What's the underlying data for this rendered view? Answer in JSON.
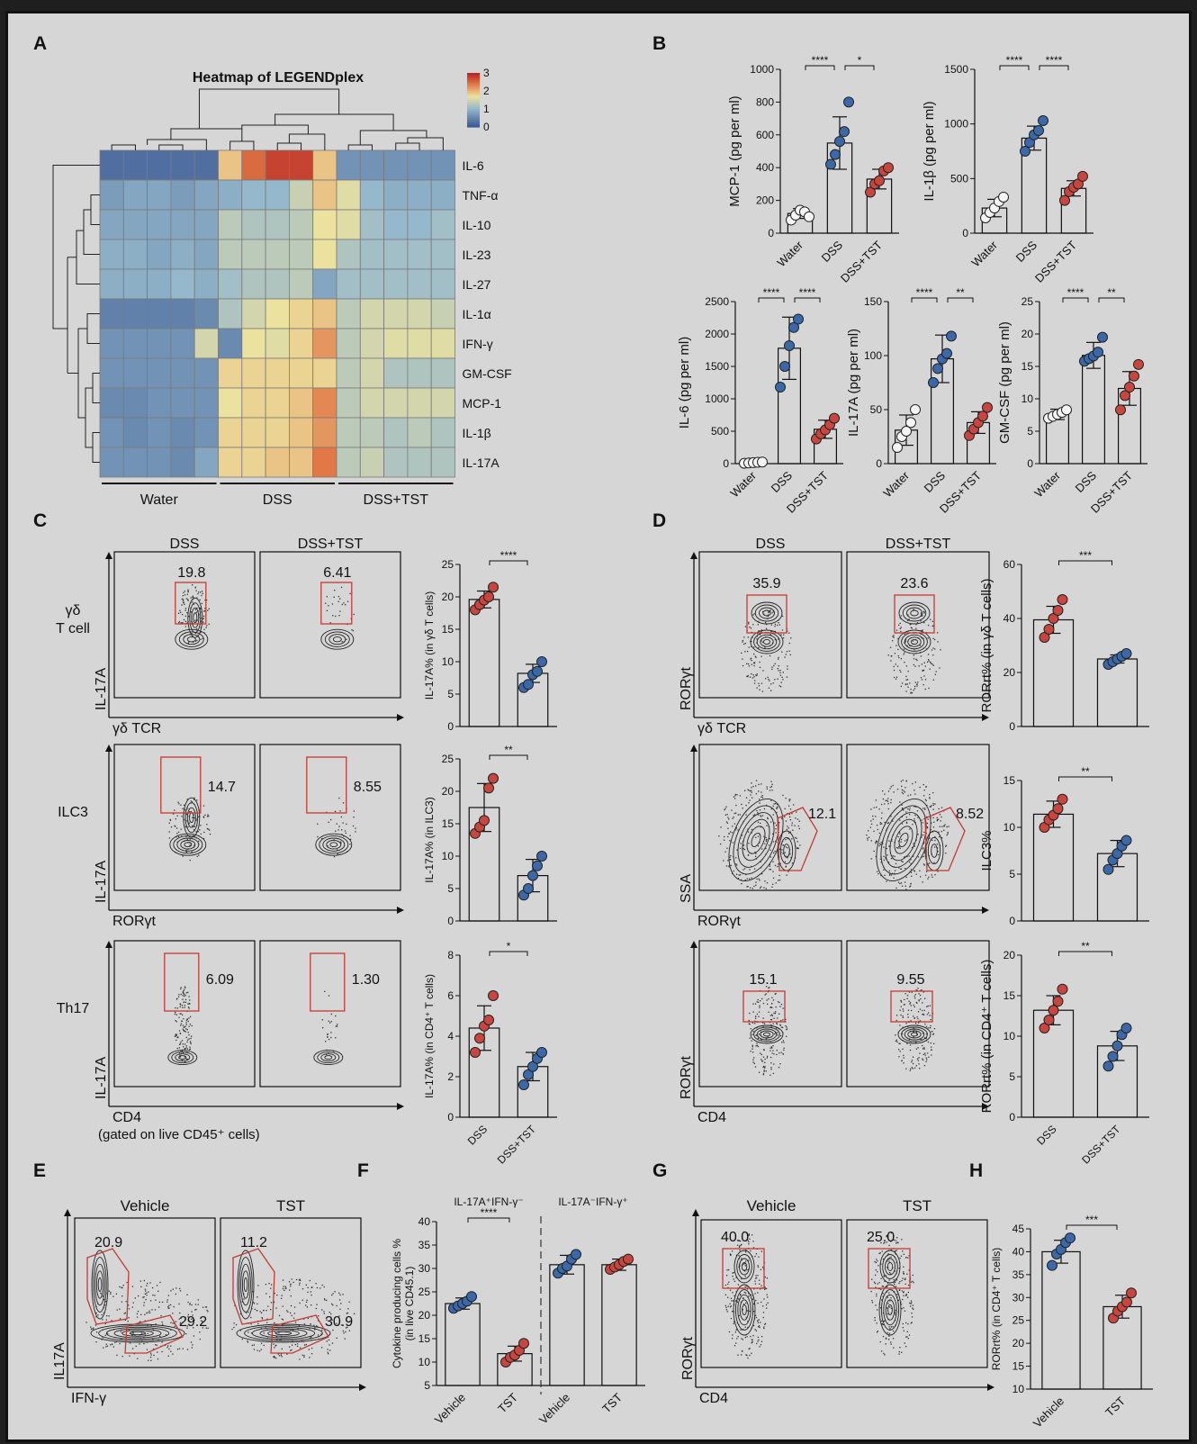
{
  "panel_labels": {
    "A": "A",
    "B": "B",
    "C": "C",
    "D": "D",
    "E": "E",
    "F": "F",
    "G": "G",
    "H": "H"
  },
  "colors": {
    "red": "#c9463f",
    "blue": "#3b68a8",
    "white": "#f4f4f4",
    "gate": "#c23b34"
  },
  "chart_data": [
    {
      "id": "A-heatmap",
      "type": "heatmap",
      "title": "Heatmap of LEGENDplex",
      "rows": [
        "IL-6",
        "TNF-α",
        "IL-10",
        "IL-23",
        "IL-27",
        "IL-1α",
        "IFN-γ",
        "GM-CSF",
        "MCP-1",
        "IL-1β",
        "IL-17A"
      ],
      "groups": [
        "Water",
        "DSS",
        "DSS+TST"
      ],
      "colorbar": {
        "ticks": [
          "3",
          "2",
          "1",
          "0"
        ],
        "range": [
          0,
          3
        ]
      },
      "values": [
        [
          0.2,
          0.2,
          0.2,
          0.2,
          0.2,
          1.9,
          2.5,
          2.8,
          2.8,
          1.9,
          0.6,
          0.6,
          0.6,
          0.6,
          0.6
        ],
        [
          0.7,
          0.8,
          0.8,
          0.7,
          0.8,
          0.9,
          1.0,
          1.0,
          1.4,
          1.9,
          1.6,
          1.0,
          0.9,
          0.9,
          0.9
        ],
        [
          0.8,
          0.8,
          0.8,
          0.8,
          0.8,
          1.3,
          1.2,
          1.2,
          1.3,
          1.7,
          1.6,
          1.1,
          1.0,
          1.0,
          1.1
        ],
        [
          0.9,
          0.9,
          0.8,
          0.9,
          0.8,
          1.3,
          1.3,
          1.3,
          1.3,
          1.7,
          1.2,
          1.1,
          1.1,
          1.1,
          1.1
        ],
        [
          0.9,
          0.9,
          0.9,
          1.0,
          0.9,
          1.1,
          1.2,
          1.2,
          1.3,
          0.8,
          1.1,
          1.1,
          1.1,
          1.1,
          1.1
        ],
        [
          0.4,
          0.4,
          0.4,
          0.4,
          0.5,
          1.2,
          1.5,
          1.7,
          1.8,
          1.9,
          1.3,
          1.5,
          1.5,
          1.5,
          1.4
        ],
        [
          0.6,
          0.6,
          0.6,
          0.6,
          1.5,
          0.5,
          1.7,
          1.6,
          1.8,
          2.2,
          1.3,
          1.5,
          1.6,
          1.6,
          1.6
        ],
        [
          0.6,
          0.6,
          0.6,
          0.6,
          0.6,
          1.8,
          1.8,
          1.8,
          1.8,
          1.8,
          1.3,
          1.5,
          1.2,
          1.2,
          1.2
        ],
        [
          0.5,
          0.5,
          0.6,
          0.6,
          0.6,
          1.7,
          1.8,
          1.8,
          1.9,
          2.3,
          1.3,
          1.5,
          1.5,
          1.5,
          1.5
        ],
        [
          0.6,
          0.5,
          0.6,
          0.5,
          0.6,
          1.8,
          1.8,
          1.8,
          1.9,
          2.2,
          1.3,
          1.3,
          1.2,
          1.3,
          1.2
        ],
        [
          0.6,
          0.6,
          0.6,
          0.5,
          0.8,
          1.8,
          1.8,
          1.9,
          1.9,
          2.4,
          1.3,
          1.4,
          1.2,
          1.2,
          1.2
        ]
      ]
    },
    {
      "id": "B-mcp1",
      "type": "bar",
      "ylabel": "MCP-1 (pg per ml)",
      "ylim": [
        0,
        1000
      ],
      "yticks": [
        "0",
        "200",
        "400",
        "600",
        "800",
        "1000"
      ],
      "categories": [
        "Water",
        "DSS",
        "DSS+TST"
      ],
      "values": [
        120,
        550,
        330
      ],
      "errors": [
        30,
        160,
        60
      ],
      "dot_colors": [
        "white",
        "blue",
        "red"
      ],
      "points": [
        [
          80,
          110,
          140,
          130,
          100
        ],
        [
          420,
          480,
          560,
          620,
          800
        ],
        [
          250,
          300,
          320,
          380,
          400
        ]
      ],
      "significance": [
        {
          "from": 0,
          "to": 1,
          "label": "****"
        },
        {
          "from": 1,
          "to": 2,
          "label": "*"
        }
      ]
    },
    {
      "id": "B-il1b",
      "type": "bar",
      "ylabel": "IL-1β (pg per ml)",
      "ylim": [
        0,
        1500
      ],
      "yticks": [
        "0",
        "500",
        "1000",
        "1500"
      ],
      "categories": [
        "Water",
        "DSS",
        "DSS+TST"
      ],
      "values": [
        230,
        870,
        410
      ],
      "errors": [
        80,
        110,
        70
      ],
      "dot_colors": [
        "white",
        "blue",
        "red"
      ],
      "points": [
        [
          140,
          190,
          230,
          290,
          330
        ],
        [
          750,
          830,
          900,
          940,
          1030
        ],
        [
          300,
          380,
          420,
          450,
          520
        ]
      ],
      "significance": [
        {
          "from": 0,
          "to": 1,
          "label": "****"
        },
        {
          "from": 1,
          "to": 2,
          "label": "****"
        }
      ]
    },
    {
      "id": "B-il6",
      "type": "bar",
      "ylabel": "IL-6 (pg per ml)",
      "ylim": [
        0,
        2500
      ],
      "yticks": [
        "0",
        "500",
        "1000",
        "1500",
        "2000",
        "2500"
      ],
      "categories": [
        "Water",
        "DSS",
        "DSS+TST"
      ],
      "values": [
        20,
        1780,
        530
      ],
      "errors": [
        10,
        480,
        140
      ],
      "dot_colors": [
        "white",
        "blue",
        "red"
      ],
      "points": [
        [
          5,
          10,
          15,
          20,
          25
        ],
        [
          1180,
          1500,
          1820,
          2100,
          2230
        ],
        [
          380,
          460,
          520,
          600,
          700
        ]
      ],
      "significance": [
        {
          "from": 0,
          "to": 1,
          "label": "****"
        },
        {
          "from": 1,
          "to": 2,
          "label": "****"
        }
      ]
    },
    {
      "id": "B-il17a",
      "type": "bar",
      "ylabel": "IL-17A (pg per ml)",
      "ylim": [
        0,
        150
      ],
      "yticks": [
        "0",
        "50",
        "100",
        "150"
      ],
      "categories": [
        "Water",
        "DSS",
        "DSS+TST"
      ],
      "values": [
        31,
        97,
        38
      ],
      "errors": [
        14,
        22,
        10
      ],
      "dot_colors": [
        "white",
        "blue",
        "red"
      ],
      "points": [
        [
          15,
          25,
          30,
          38,
          50
        ],
        [
          75,
          88,
          97,
          102,
          118
        ],
        [
          26,
          32,
          38,
          44,
          52
        ]
      ],
      "significance": [
        {
          "from": 0,
          "to": 1,
          "label": "****"
        },
        {
          "from": 1,
          "to": 2,
          "label": "**"
        }
      ]
    },
    {
      "id": "B-gmcsf",
      "type": "bar",
      "ylabel": "GM-CSF (pg per ml)",
      "ylim": [
        0,
        25
      ],
      "yticks": [
        "0",
        "5",
        "10",
        "15",
        "20",
        "25"
      ],
      "categories": [
        "Water",
        "DSS",
        "DSS+TST"
      ],
      "values": [
        7.6,
        16.7,
        11.6
      ],
      "errors": [
        0.8,
        2.0,
        2.6
      ],
      "dot_colors": [
        "white",
        "blue",
        "red"
      ],
      "points": [
        [
          7.0,
          7.3,
          7.6,
          7.9,
          8.3
        ],
        [
          15.8,
          16.2,
          16.6,
          17.2,
          19.5
        ],
        [
          8.3,
          10.5,
          11.8,
          13.5,
          15.3
        ]
      ],
      "significance": [
        {
          "from": 0,
          "to": 1,
          "label": "****"
        },
        {
          "from": 1,
          "to": 2,
          "label": "**"
        }
      ]
    },
    {
      "id": "C-gdt",
      "type": "bar",
      "ylabel": "IL-17A% (in γδ T cells)",
      "ylim": [
        0,
        25
      ],
      "yticks": [
        "0",
        "5",
        "10",
        "15",
        "20",
        "25"
      ],
      "categories": [
        "DSS",
        "DSS+TST"
      ],
      "show_xticks": false,
      "values": [
        19.6,
        8.2
      ],
      "errors": [
        1.3,
        1.4
      ],
      "dot_colors": [
        "red",
        "blue"
      ],
      "points": [
        [
          18.0,
          18.8,
          19.5,
          20.0,
          21.5
        ],
        [
          6.0,
          6.5,
          8.0,
          8.5,
          10.0
        ]
      ],
      "significance": [
        {
          "from": 0,
          "to": 1,
          "label": "****"
        }
      ]
    },
    {
      "id": "C-ilc3",
      "type": "bar",
      "ylabel": "IL-17A% (in ILC3)",
      "ylim": [
        0,
        25
      ],
      "yticks": [
        "0",
        "5",
        "10",
        "15",
        "20",
        "25"
      ],
      "categories": [
        "DSS",
        "DSS+TST"
      ],
      "show_xticks": false,
      "values": [
        17.5,
        7.0
      ],
      "errors": [
        3.7,
        2.5
      ],
      "dot_colors": [
        "red",
        "blue"
      ],
      "points": [
        [
          13.5,
          14.5,
          15.5,
          20.5,
          22.0
        ],
        [
          4.0,
          5.0,
          7.0,
          8.5,
          10.0
        ]
      ],
      "significance": [
        {
          "from": 0,
          "to": 1,
          "label": "**"
        }
      ]
    },
    {
      "id": "C-th17",
      "type": "bar",
      "ylabel": "IL-17A% (in CD4⁺ T cells)",
      "ylim": [
        0,
        8
      ],
      "yticks": [
        "0",
        "2",
        "4",
        "6",
        "8"
      ],
      "categories": [
        "DSS",
        "DSS+TST"
      ],
      "values": [
        4.4,
        2.5
      ],
      "errors": [
        1.1,
        0.7
      ],
      "dot_colors": [
        "red",
        "blue"
      ],
      "points": [
        [
          3.2,
          3.9,
          4.5,
          4.8,
          6.0
        ],
        [
          1.6,
          2.1,
          2.5,
          2.9,
          3.2
        ]
      ],
      "significance": [
        {
          "from": 0,
          "to": 1,
          "label": "*"
        }
      ]
    },
    {
      "id": "D-gdt",
      "type": "bar",
      "ylabel": "RORrt% (in γδ T cells)",
      "ylim": [
        0,
        60
      ],
      "yticks": [
        "0",
        "20",
        "40",
        "60"
      ],
      "categories": [
        "DSS",
        "DSS+TST"
      ],
      "show_xticks": false,
      "values": [
        39.5,
        25.0
      ],
      "errors": [
        5.0,
        1.5
      ],
      "dot_colors": [
        "red",
        "blue"
      ],
      "points": [
        [
          33.0,
          36.0,
          40.0,
          43.0,
          47.0
        ],
        [
          23.0,
          24.0,
          25.0,
          26.0,
          27.0
        ]
      ],
      "significance": [
        {
          "from": 0,
          "to": 1,
          "label": "***"
        }
      ]
    },
    {
      "id": "D-ilc3",
      "type": "bar",
      "ylabel": "ILC3%",
      "ylim": [
        0,
        15
      ],
      "yticks": [
        "0",
        "5",
        "10",
        "15"
      ],
      "categories": [
        "DSS",
        "DSS+TST"
      ],
      "show_xticks": false,
      "values": [
        11.4,
        7.2
      ],
      "errors": [
        1.4,
        1.4
      ],
      "dot_colors": [
        "red",
        "blue"
      ],
      "points": [
        [
          10.0,
          10.8,
          11.3,
          12.0,
          13.0
        ],
        [
          5.5,
          6.5,
          7.2,
          8.0,
          8.6
        ]
      ],
      "significance": [
        {
          "from": 0,
          "to": 1,
          "label": "**"
        }
      ]
    },
    {
      "id": "D-th17",
      "type": "bar",
      "ylabel": "RORrt% (in CD4⁺ T cells)",
      "ylim": [
        0,
        20
      ],
      "yticks": [
        "0",
        "5",
        "10",
        "15",
        "20"
      ],
      "categories": [
        "DSS",
        "DSS+TST"
      ],
      "values": [
        13.2,
        8.8
      ],
      "errors": [
        1.8,
        1.8
      ],
      "dot_colors": [
        "red",
        "blue"
      ],
      "points": [
        [
          11.0,
          12.0,
          13.2,
          14.3,
          15.8
        ],
        [
          6.3,
          7.5,
          8.8,
          10.2,
          11.0
        ]
      ],
      "significance": [
        {
          "from": 0,
          "to": 1,
          "label": "**"
        }
      ]
    },
    {
      "id": "F",
      "type": "bar",
      "ylabel": "Cytokine producing cells %",
      "ylabel2": "(in live CD45.1)",
      "ylim": [
        5,
        40
      ],
      "yticks": [
        "5",
        "10",
        "15",
        "20",
        "25",
        "30",
        "35",
        "40"
      ],
      "categories": [
        "Vehicle",
        "TST",
        "Vehicle",
        "TST"
      ],
      "group_titles": [
        "IL-17A⁺IFN-γ⁻",
        "IL-17A⁻IFN-γ⁺"
      ],
      "values": [
        22.5,
        11.8,
        30.8,
        30.8
      ],
      "errors": [
        1.2,
        1.6,
        2.0,
        1.2
      ],
      "dot_colors": [
        "blue",
        "red",
        "blue",
        "red"
      ],
      "points": [
        [
          21.5,
          22.0,
          22.5,
          23.0,
          24.0
        ],
        [
          10.0,
          11.0,
          11.5,
          12.5,
          14.0
        ],
        [
          29.0,
          30.0,
          30.5,
          32.0,
          33.0
        ],
        [
          29.8,
          30.3,
          30.8,
          31.5,
          32.0
        ]
      ],
      "significance": [
        {
          "from": 0,
          "to": 1,
          "label": "****"
        }
      ]
    },
    {
      "id": "H",
      "type": "bar",
      "ylabel": "RORrt% (in CD4⁺ T cells)",
      "ylim": [
        10,
        45
      ],
      "yticks": [
        "10",
        "15",
        "20",
        "25",
        "30",
        "35",
        "40",
        "45"
      ],
      "categories": [
        "Vehicle",
        "TST"
      ],
      "values": [
        40.0,
        28.0
      ],
      "errors": [
        2.5,
        2.5
      ],
      "dot_colors": [
        "blue",
        "red"
      ],
      "points": [
        [
          37.0,
          39.5,
          40.5,
          42.0,
          43.0
        ],
        [
          25.5,
          27.0,
          28.0,
          29.0,
          31.0
        ]
      ],
      "significance": [
        {
          "from": 0,
          "to": 1,
          "label": "***"
        }
      ]
    }
  ],
  "flow": {
    "C": {
      "group_titles": [
        "DSS",
        "DSS+TST"
      ],
      "rows": [
        {
          "row_label": "γδ\nT cell",
          "ylabel": "IL-17A",
          "xlabel": "γδ TCR",
          "values": [
            "19.8",
            "6.41"
          ]
        },
        {
          "row_label": "ILC3",
          "ylabel": "IL-17A",
          "xlabel": "RORγt",
          "values": [
            "14.7",
            "8.55"
          ]
        },
        {
          "row_label": "Th17",
          "ylabel": "IL-17A",
          "xlabel": "CD4",
          "values": [
            "6.09",
            "1.30"
          ],
          "note": "(gated on live CD45⁺ cells)"
        }
      ]
    },
    "D": {
      "group_titles": [
        "DSS",
        "DSS+TST"
      ],
      "rows": [
        {
          "ylabel": "RORγt",
          "xlabel": "γδ TCR",
          "values": [
            "35.9",
            "23.6"
          ]
        },
        {
          "ylabel": "SSA",
          "xlabel": "RORγt",
          "values": [
            "12.1",
            "8.52"
          ]
        },
        {
          "ylabel": "RORγt",
          "xlabel": "CD4",
          "values": [
            "15.1",
            "9.55"
          ]
        }
      ]
    },
    "E": {
      "group_titles": [
        "Vehicle",
        "TST"
      ],
      "ylabel": "IL17A",
      "xlabel": "IFN-γ",
      "values": [
        [
          "20.9",
          "29.2"
        ],
        [
          "11.2",
          "30.9"
        ]
      ]
    },
    "G": {
      "group_titles": [
        "Vehicle",
        "TST"
      ],
      "ylabel": "RORγt",
      "xlabel": "CD4",
      "values": [
        "40.0",
        "25.0"
      ]
    }
  }
}
